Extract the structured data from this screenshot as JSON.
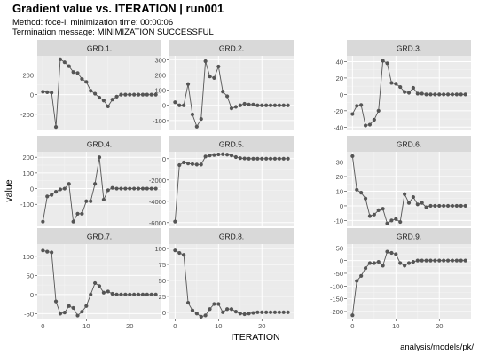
{
  "header": {
    "title": "Gradient value vs. ITERATION | run001",
    "subtitle_line1": "Method: foce-i, minimization time: 00:00:06",
    "subtitle_line2": "Termination message: MINIMIZATION SUCCESSFUL"
  },
  "caption": "analysis/models/pk/",
  "colors": {
    "panel_bg": "#ebebeb",
    "strip_bg": "#d9d9d9",
    "grid_major": "#ffffff",
    "grid_minor": "#f5f5f5",
    "line": "#555555",
    "point": "#555555",
    "tick_text": "#4d4d4d",
    "strip_text": "#1a1a1a"
  },
  "chart_data": {
    "type": "line",
    "xlabel": "ITERATION",
    "ylabel": "value",
    "x_ticks": [
      0,
      10,
      20
    ],
    "xlim": [
      -1.3,
      27.3
    ],
    "x": [
      0,
      1,
      2,
      3,
      4,
      5,
      6,
      7,
      8,
      9,
      10,
      11,
      12,
      13,
      14,
      15,
      16,
      17,
      18,
      19,
      20,
      21,
      22,
      23,
      24,
      25,
      26
    ],
    "facet_layout": {
      "rows": 3,
      "cols": 3
    },
    "panels": [
      {
        "name": "GRD.1.",
        "ylim": [
          -365,
          395
        ],
        "y_ticks": [
          -200,
          0,
          200
        ],
        "values": [
          30,
          25,
          20,
          -330,
          360,
          330,
          290,
          230,
          220,
          160,
          130,
          40,
          10,
          -30,
          -60,
          -120,
          -50,
          -20,
          0,
          0,
          0,
          0,
          0,
          0,
          0,
          0,
          0
        ]
      },
      {
        "name": "GRD.2.",
        "ylim": [
          -165,
          325
        ],
        "y_ticks": [
          -100,
          0,
          100,
          200,
          300
        ],
        "values": [
          20,
          0,
          0,
          140,
          -60,
          -140,
          -90,
          290,
          190,
          180,
          255,
          90,
          60,
          -20,
          -10,
          0,
          10,
          5,
          5,
          0,
          0,
          0,
          0,
          0,
          0,
          0,
          0
        ]
      },
      {
        "name": "GRD.3.",
        "ylim": [
          -44,
          47
        ],
        "y_ticks": [
          -40,
          -20,
          0,
          20,
          40
        ],
        "values": [
          -24,
          -14,
          -13,
          -38,
          -37,
          -31,
          -20,
          41,
          38,
          14,
          13,
          9,
          3,
          2,
          8,
          1,
          1,
          0,
          0,
          0,
          0,
          0,
          0,
          0,
          0,
          0,
          0
        ]
      },
      {
        "name": "GRD.4.",
        "ylim": [
          -240,
          235
        ],
        "y_ticks": [
          -100,
          0,
          100,
          200
        ],
        "values": [
          -210,
          -50,
          -40,
          -20,
          -5,
          0,
          30,
          -210,
          -160,
          -160,
          -80,
          -80,
          30,
          200,
          -70,
          -10,
          5,
          0,
          0,
          0,
          0,
          0,
          0,
          0,
          0,
          0,
          0
        ]
      },
      {
        "name": "GRD.5.",
        "ylim": [
          -6350,
          650
        ],
        "y_ticks": [
          -6000,
          -4000,
          -2000,
          0
        ],
        "values": [
          -5900,
          -600,
          -350,
          -450,
          -500,
          -550,
          -550,
          200,
          300,
          350,
          400,
          420,
          380,
          300,
          150,
          50,
          20,
          0,
          0,
          0,
          0,
          0,
          0,
          0,
          0,
          0,
          0
        ]
      },
      {
        "name": "GRD.6.",
        "ylim": [
          -14,
          37
        ],
        "y_ticks": [
          -10,
          0,
          10,
          20,
          30
        ],
        "values": [
          34,
          11,
          9,
          5,
          -7,
          -6,
          -3,
          -2,
          -12,
          -10,
          -9,
          -11,
          8,
          2,
          6,
          1,
          2,
          -1,
          0,
          0,
          0,
          0,
          0,
          0,
          0,
          0,
          0
        ]
      },
      {
        "name": "GRD.7.",
        "ylim": [
          -63,
          132
        ],
        "y_ticks": [
          -50,
          0,
          50,
          100
        ],
        "values": [
          115,
          112,
          110,
          -18,
          -50,
          -47,
          -30,
          -35,
          -55,
          -45,
          -30,
          0,
          30,
          22,
          5,
          8,
          2,
          0,
          0,
          0,
          0,
          0,
          0,
          0,
          0,
          0,
          0
        ]
      },
      {
        "name": "GRD.8.",
        "ylim": [
          -10,
          107
        ],
        "y_ticks": [
          0,
          25,
          50,
          75,
          100
        ],
        "values": [
          97,
          93,
          90,
          15,
          3,
          -2,
          -7,
          -5,
          5,
          13,
          13,
          0,
          5,
          5,
          1,
          -2,
          -3,
          -2,
          -1,
          0,
          0,
          0,
          0,
          0,
          0,
          0,
          0
        ]
      },
      {
        "name": "GRD.9.",
        "ylim": [
          -228,
          65
        ],
        "y_ticks": [
          -200,
          -150,
          -100,
          -50,
          0,
          50
        ],
        "values": [
          -215,
          -80,
          -60,
          -30,
          -10,
          -10,
          -5,
          -20,
          35,
          30,
          25,
          -10,
          -20,
          -10,
          -5,
          0,
          0,
          0,
          0,
          0,
          0,
          0,
          0,
          0,
          0,
          0,
          0
        ]
      }
    ]
  }
}
